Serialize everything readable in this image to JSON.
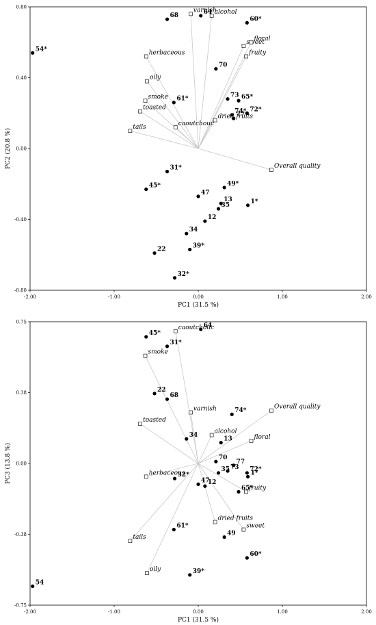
{
  "chart_data": [
    {
      "type": "scatter",
      "subtype": "biplot",
      "xlabel": "PC1 (31.5 %)",
      "ylabel": "PC2 (20.8 %)",
      "xlim": [
        -2.0,
        2.0
      ],
      "ylim": [
        -0.8,
        0.8
      ],
      "x_ticks": [
        "-2.00",
        "-1.00",
        "0.00",
        "1.00",
        "2.00"
      ],
      "y_ticks": [
        "-0.80",
        "-0.40",
        "0.00",
        "0.40",
        "0.80"
      ],
      "x_tick_values": [
        -2,
        -1,
        0,
        1,
        2
      ],
      "y_tick_values": [
        -0.8,
        -0.4,
        0,
        0.4,
        0.8
      ],
      "grid": false,
      "samples": [
        {
          "label": "54*",
          "x": -1.97,
          "y": 0.54
        },
        {
          "label": "68",
          "x": -0.37,
          "y": 0.73
        },
        {
          "label": "64",
          "x": 0.03,
          "y": 0.75
        },
        {
          "label": "60*",
          "x": 0.58,
          "y": 0.71
        },
        {
          "label": "70",
          "x": 0.21,
          "y": 0.45
        },
        {
          "label": "61*",
          "x": -0.29,
          "y": 0.26
        },
        {
          "label": "73",
          "x": 0.35,
          "y": 0.28
        },
        {
          "label": "65*",
          "x": 0.48,
          "y": 0.27
        },
        {
          "label": "74*",
          "x": 0.4,
          "y": 0.19
        },
        {
          "label": "77",
          "x": 0.42,
          "y": 0.17
        },
        {
          "label": "72*",
          "x": 0.58,
          "y": 0.2
        },
        {
          "label": "31*",
          "x": -0.37,
          "y": -0.13
        },
        {
          "label": "45*",
          "x": -0.62,
          "y": -0.23
        },
        {
          "label": "47",
          "x": 0.0,
          "y": -0.27
        },
        {
          "label": "49*",
          "x": 0.31,
          "y": -0.22
        },
        {
          "label": "13",
          "x": 0.27,
          "y": -0.31
        },
        {
          "label": "35",
          "x": 0.24,
          "y": -0.34
        },
        {
          "label": "1*",
          "x": 0.59,
          "y": -0.32
        },
        {
          "label": "12",
          "x": 0.08,
          "y": -0.41
        },
        {
          "label": "34",
          "x": -0.14,
          "y": -0.48
        },
        {
          "label": "39*",
          "x": -0.1,
          "y": -0.57
        },
        {
          "label": "22",
          "x": -0.52,
          "y": -0.59
        },
        {
          "label": "32*",
          "x": -0.28,
          "y": -0.73
        }
      ],
      "loadings": [
        {
          "label": "varnish",
          "x": -0.09,
          "y": 0.76
        },
        {
          "label": "alcohol",
          "x": 0.16,
          "y": 0.75
        },
        {
          "label": "herbaceous",
          "x": -0.62,
          "y": 0.52
        },
        {
          "label": "sweet",
          "x": 0.54,
          "y": 0.58
        },
        {
          "label": "floral",
          "x": 0.63,
          "y": 0.6
        },
        {
          "label": "fruity",
          "x": 0.57,
          "y": 0.52
        },
        {
          "label": "oily",
          "x": -0.61,
          "y": 0.38
        },
        {
          "label": "smoke",
          "x": -0.63,
          "y": 0.27
        },
        {
          "label": "toasted",
          "x": -0.69,
          "y": 0.21
        },
        {
          "label": "caoutchouc",
          "x": -0.27,
          "y": 0.12
        },
        {
          "label": "dried fruits",
          "x": 0.2,
          "y": 0.16
        },
        {
          "label": "tails",
          "x": -0.81,
          "y": 0.1
        },
        {
          "label": "Overall quality",
          "x": 0.87,
          "y": -0.12
        }
      ]
    },
    {
      "type": "scatter",
      "subtype": "biplot",
      "xlabel": "PC1 (31.5 %)",
      "ylabel": "PC3 (13.8 %)",
      "xlim": [
        -2.0,
        2.0
      ],
      "ylim": [
        -0.75,
        0.75
      ],
      "x_ticks": [
        "-2.00",
        "-1.00",
        "0.00",
        "1.00",
        "2.00"
      ],
      "y_ticks": [
        "-0.75",
        "-0.38",
        "0.00",
        "0.38",
        "0.75"
      ],
      "x_tick_values": [
        -2,
        -1,
        0,
        1,
        2
      ],
      "y_tick_values": [
        -0.75,
        -0.375,
        0,
        0.375,
        0.75
      ],
      "grid": false,
      "samples": [
        {
          "label": "64",
          "x": 0.03,
          "y": 0.71
        },
        {
          "label": "45*",
          "x": -0.62,
          "y": 0.67
        },
        {
          "label": "31*",
          "x": -0.37,
          "y": 0.62
        },
        {
          "label": "22",
          "x": -0.52,
          "y": 0.37
        },
        {
          "label": "68",
          "x": -0.37,
          "y": 0.34
        },
        {
          "label": "74*",
          "x": 0.4,
          "y": 0.26
        },
        {
          "label": "34",
          "x": -0.14,
          "y": 0.13
        },
        {
          "label": "13",
          "x": 0.27,
          "y": 0.11
        },
        {
          "label": "70",
          "x": 0.21,
          "y": 0.01
        },
        {
          "label": "77",
          "x": 0.42,
          "y": -0.01
        },
        {
          "label": "35",
          "x": 0.24,
          "y": -0.05
        },
        {
          "label": "73",
          "x": 0.35,
          "y": -0.04
        },
        {
          "label": "72*",
          "x": 0.58,
          "y": -0.05
        },
        {
          "label": "1*",
          "x": 0.59,
          "y": -0.07
        },
        {
          "label": "32*",
          "x": -0.28,
          "y": -0.08
        },
        {
          "label": "47",
          "x": 0.0,
          "y": -0.11
        },
        {
          "label": "12",
          "x": 0.08,
          "y": -0.12
        },
        {
          "label": "65*",
          "x": 0.48,
          "y": -0.15
        },
        {
          "label": "61*",
          "x": -0.29,
          "y": -0.35
        },
        {
          "label": "49",
          "x": 0.31,
          "y": -0.39
        },
        {
          "label": "60*",
          "x": 0.58,
          "y": -0.5
        },
        {
          "label": "39*",
          "x": -0.1,
          "y": -0.59
        },
        {
          "label": "54",
          "x": -1.97,
          "y": -0.65
        }
      ],
      "loadings": [
        {
          "label": "caoutchouc",
          "x": -0.27,
          "y": 0.7
        },
        {
          "label": "smoke",
          "x": -0.63,
          "y": 0.57
        },
        {
          "label": "varnish",
          "x": -0.09,
          "y": 0.27
        },
        {
          "label": "Overall quality",
          "x": 0.87,
          "y": 0.28
        },
        {
          "label": "toasted",
          "x": -0.69,
          "y": 0.21
        },
        {
          "label": "alcohol",
          "x": 0.16,
          "y": 0.15
        },
        {
          "label": "floral",
          "x": 0.63,
          "y": 0.12
        },
        {
          "label": "herbaceous",
          "x": -0.62,
          "y": -0.07
        },
        {
          "label": "fruity",
          "x": 0.57,
          "y": -0.15
        },
        {
          "label": "dried fruits",
          "x": 0.2,
          "y": -0.31
        },
        {
          "label": "sweet",
          "x": 0.54,
          "y": -0.35
        },
        {
          "label": "tails",
          "x": -0.81,
          "y": -0.41
        },
        {
          "label": "oily",
          "x": -0.61,
          "y": -0.58
        }
      ]
    }
  ]
}
